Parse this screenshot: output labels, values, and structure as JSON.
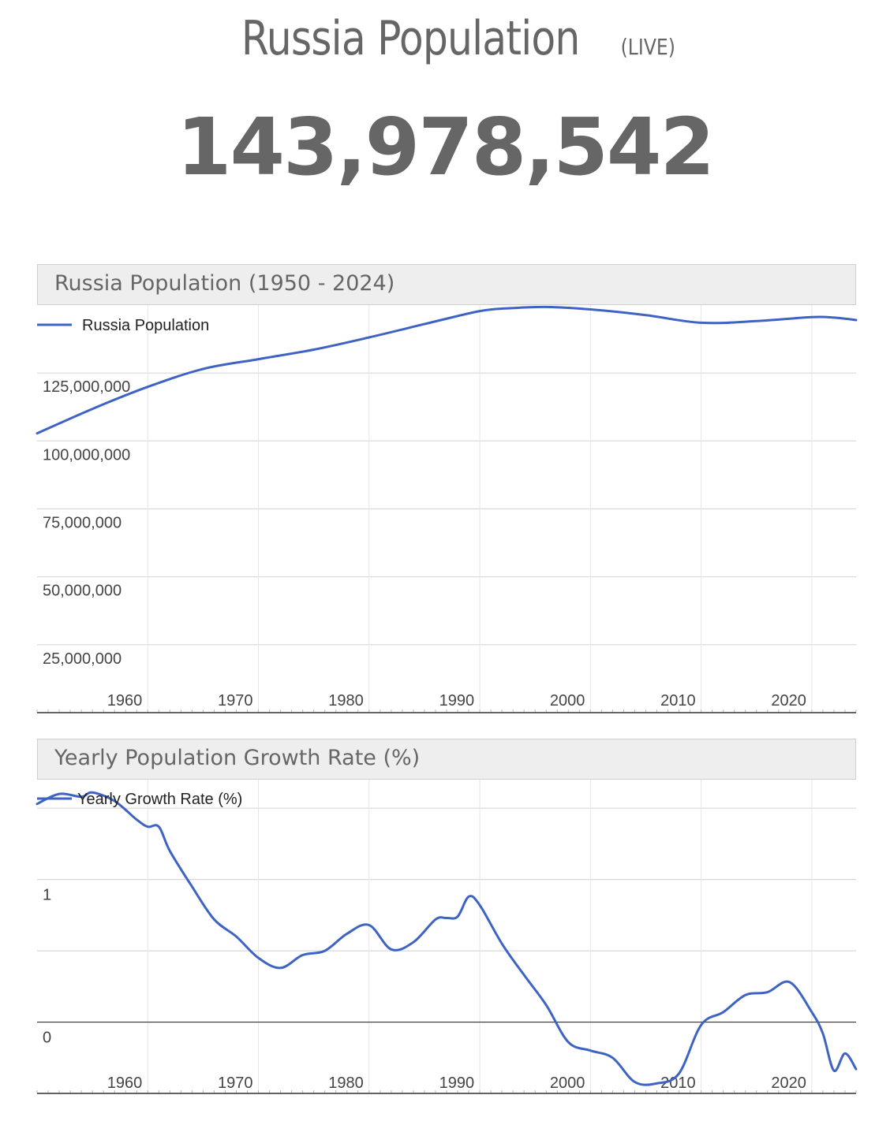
{
  "page": {
    "title": "Russia Population",
    "title_badge": "(LIVE)",
    "live_counter": "143,978,542"
  },
  "colors": {
    "series_line": "#3f63c4",
    "grid": "#dddddd",
    "text": "#666666",
    "header_bg": "#eeeeee"
  },
  "chart_data": [
    {
      "type": "line",
      "title": "Russia Population (1950 - 2024)",
      "legend": "top-left",
      "grid": true,
      "xlim": [
        1950,
        2024
      ],
      "ylim": [
        0,
        150000000
      ],
      "x_ticks": [
        1960,
        1970,
        1980,
        1990,
        2000,
        2010,
        2020
      ],
      "y_ticks": [
        {
          "value": 25000000,
          "label": "25,000,000"
        },
        {
          "value": 50000000,
          "label": "50,000,000"
        },
        {
          "value": 75000000,
          "label": "75,000,000"
        },
        {
          "value": 100000000,
          "label": "100,000,000"
        },
        {
          "value": 125000000,
          "label": "125,000,000"
        }
      ],
      "series": [
        {
          "name": "Russia Population",
          "x": [
            1950,
            1955,
            1960,
            1965,
            1970,
            1975,
            1980,
            1985,
            1990,
            1993,
            1996,
            2000,
            2005,
            2010,
            2015,
            2020,
            2022,
            2024
          ],
          "values": [
            102800000,
            111800000,
            119900000,
            126500000,
            130100000,
            133600000,
            138100000,
            143000000,
            147800000,
            148900000,
            149300000,
            148400000,
            146300000,
            143500000,
            144100000,
            145600000,
            145400000,
            144500000
          ]
        }
      ]
    },
    {
      "type": "line",
      "title": "Yearly Population Growth Rate (%)",
      "legend": "top-left",
      "grid": true,
      "xlim": [
        1950,
        2024
      ],
      "ylim": [
        -0.5,
        1.7
      ],
      "x_ticks": [
        1960,
        1970,
        1980,
        1990,
        2000,
        2010,
        2020
      ],
      "y_ticks": [
        {
          "value": 0,
          "label": "0"
        },
        {
          "value": 1,
          "label": "1"
        }
      ],
      "series": [
        {
          "name": "Yearly Growth Rate (%)",
          "x": [
            1950,
            1952,
            1954,
            1955,
            1957,
            1959,
            1960,
            1961,
            1962,
            1964,
            1966,
            1968,
            1970,
            1972,
            1974,
            1976,
            1978,
            1980,
            1982,
            1984,
            1986,
            1987,
            1988,
            1989,
            1990,
            1992,
            1994,
            1996,
            1998,
            2000,
            2002,
            2004,
            2006,
            2008,
            2010,
            2012,
            2014,
            2016,
            2018,
            2020,
            2021,
            2022,
            2023,
            2024
          ],
          "values": [
            1.53,
            1.6,
            1.58,
            1.61,
            1.55,
            1.42,
            1.37,
            1.37,
            1.2,
            0.95,
            0.72,
            0.6,
            0.45,
            0.38,
            0.47,
            0.5,
            0.62,
            0.68,
            0.51,
            0.56,
            0.72,
            0.73,
            0.74,
            0.88,
            0.82,
            0.55,
            0.33,
            0.12,
            -0.14,
            -0.2,
            -0.25,
            -0.42,
            -0.43,
            -0.36,
            -0.02,
            0.07,
            0.19,
            0.21,
            0.28,
            0.07,
            -0.08,
            -0.34,
            -0.22,
            -0.33
          ]
        }
      ]
    }
  ]
}
